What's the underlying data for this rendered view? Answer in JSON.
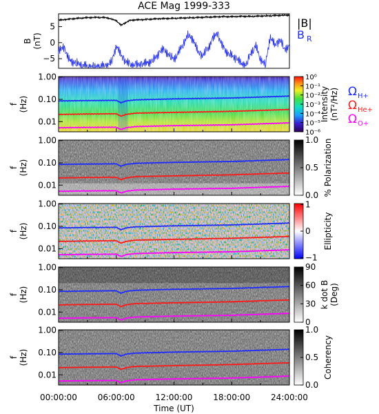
{
  "title": "ACE Mag 1999-333",
  "time_axis": {
    "label": "Time (UT)",
    "ticks": [
      "00:00:00",
      "06:00:00",
      "12:00:00",
      "18:00:00",
      "24:00:00"
    ],
    "range_hours": [
      0,
      24
    ]
  },
  "legend_cyclotron": {
    "h": {
      "label": "Ω",
      "sub": "H+",
      "color": "#1f2bff"
    },
    "he": {
      "label": "Ω",
      "sub": "He+",
      "color": "#ff1a1a"
    },
    "o": {
      "label": "Ω",
      "sub": "O+",
      "color": "#ff00ff"
    }
  },
  "chart_data": [
    {
      "type": "line",
      "name": "mag",
      "ylabel": "B (nT)",
      "ylabel_line1": "B",
      "ylabel_line2": "(nT)",
      "ylim": [
        -8,
        9
      ],
      "yticks": [
        5,
        0,
        -5
      ],
      "legend": {
        "total": "|B|",
        "radial": "B",
        "radial_sub": "R"
      },
      "series": [
        {
          "name": "|B|",
          "color": "#000000",
          "x": [
            0,
            1,
            2,
            3,
            4,
            5,
            6,
            6.5,
            7,
            7.5,
            8,
            9,
            10,
            11,
            12,
            13,
            14,
            15,
            16,
            17,
            18,
            19,
            20,
            21,
            22,
            23,
            24
          ],
          "y": [
            7.0,
            7.3,
            7.6,
            7.8,
            7.9,
            7.8,
            6.9,
            5.4,
            6.3,
            7.0,
            7.1,
            7.2,
            7.4,
            7.5,
            7.6,
            7.7,
            7.8,
            7.9,
            8.0,
            8.1,
            8.1,
            8.2,
            8.2,
            8.3,
            8.4,
            8.5,
            8.6
          ]
        },
        {
          "name": "B_R",
          "color": "#1f2bff",
          "x": [
            0,
            0.5,
            1,
            1.5,
            2,
            2.5,
            3,
            4,
            5,
            5.5,
            6,
            6.5,
            7,
            7.5,
            8,
            8.5,
            9,
            9.5,
            10,
            10.5,
            11,
            11.5,
            12,
            12.5,
            13,
            13.5,
            14,
            14.5,
            15,
            15.5,
            16,
            16.5,
            17,
            17.5,
            18,
            18.5,
            19,
            19.5,
            20,
            20.5,
            21,
            21.5,
            22,
            22.5,
            23,
            23.5,
            24
          ],
          "y": [
            -3,
            -1,
            -5,
            -6,
            -6.5,
            -7,
            -7.5,
            -7.5,
            -7.3,
            -6,
            -1,
            -4,
            -6,
            -7,
            -7,
            -6.8,
            -6.5,
            -6,
            -5,
            -3,
            -2,
            -4,
            -5,
            -3,
            0,
            2.5,
            1,
            -3,
            -4,
            -2,
            1,
            3,
            -1,
            -3,
            -4,
            -5,
            -6.5,
            -7,
            -3,
            -1,
            -5,
            -7,
            2,
            -1,
            1,
            -2,
            -1
          ]
        }
      ]
    },
    {
      "type": "heatmap",
      "name": "intensity",
      "ylabel_line1": "f",
      "ylabel_line2": "(Hz)",
      "yticks": [
        "1.00",
        "0.10",
        "0.01"
      ],
      "colorbar": {
        "label_line1": "Intensity",
        "label_line2": "(nT²/Hz)",
        "ticks": [
          "10⁰",
          "10⁻¹",
          "10⁻²",
          "10⁻³",
          "10⁻⁴",
          "10⁻⁵",
          "10⁻⁶"
        ]
      }
    },
    {
      "type": "heatmap",
      "name": "polarization",
      "ylabel_line1": "f",
      "ylabel_line2": "(Hz)",
      "yticks": [
        "1.00",
        "0.10",
        "0.01"
      ],
      "colorbar": {
        "label": "% Polarization",
        "ticks": [
          "1.0",
          "0.5",
          "0.0"
        ]
      }
    },
    {
      "type": "heatmap",
      "name": "ellipticity",
      "ylabel_line1": "f",
      "ylabel_line2": "(Hz)",
      "yticks": [
        "1.00",
        "0.10",
        "0.01"
      ],
      "colorbar": {
        "label": "Ellipticity",
        "ticks": [
          "1",
          "0",
          "−1"
        ]
      }
    },
    {
      "type": "heatmap",
      "name": "kdotb",
      "ylabel_line1": "f",
      "ylabel_line2": "(Hz)",
      "yticks": [
        "1.00",
        "0.10",
        "0.01"
      ],
      "colorbar": {
        "label_line1": "k dot B",
        "label_line2": "(Deg)",
        "ticks": [
          "90",
          "60",
          "30",
          "0"
        ]
      }
    },
    {
      "type": "heatmap",
      "name": "coherency",
      "ylabel_line1": "f",
      "ylabel_line2": "(Hz)",
      "yticks": [
        "1.00",
        "0.10",
        "0.01"
      ],
      "colorbar": {
        "label": "Coherency",
        "ticks": [
          "1.0",
          "0.5",
          "0.0"
        ]
      }
    }
  ],
  "cyclotron_lines": {
    "x": [
      0,
      3,
      6,
      6.5,
      7,
      8,
      12,
      18,
      24
    ],
    "h_plus_hz": [
      0.085,
      0.088,
      0.09,
      0.07,
      0.085,
      0.095,
      0.105,
      0.115,
      0.14
    ],
    "he_plus_hz": [
      0.021,
      0.022,
      0.0225,
      0.0175,
      0.021,
      0.024,
      0.026,
      0.029,
      0.035
    ],
    "o_plus_hz": [
      0.0053,
      0.0055,
      0.0056,
      0.0044,
      0.0053,
      0.006,
      0.0066,
      0.0072,
      0.0088
    ]
  }
}
